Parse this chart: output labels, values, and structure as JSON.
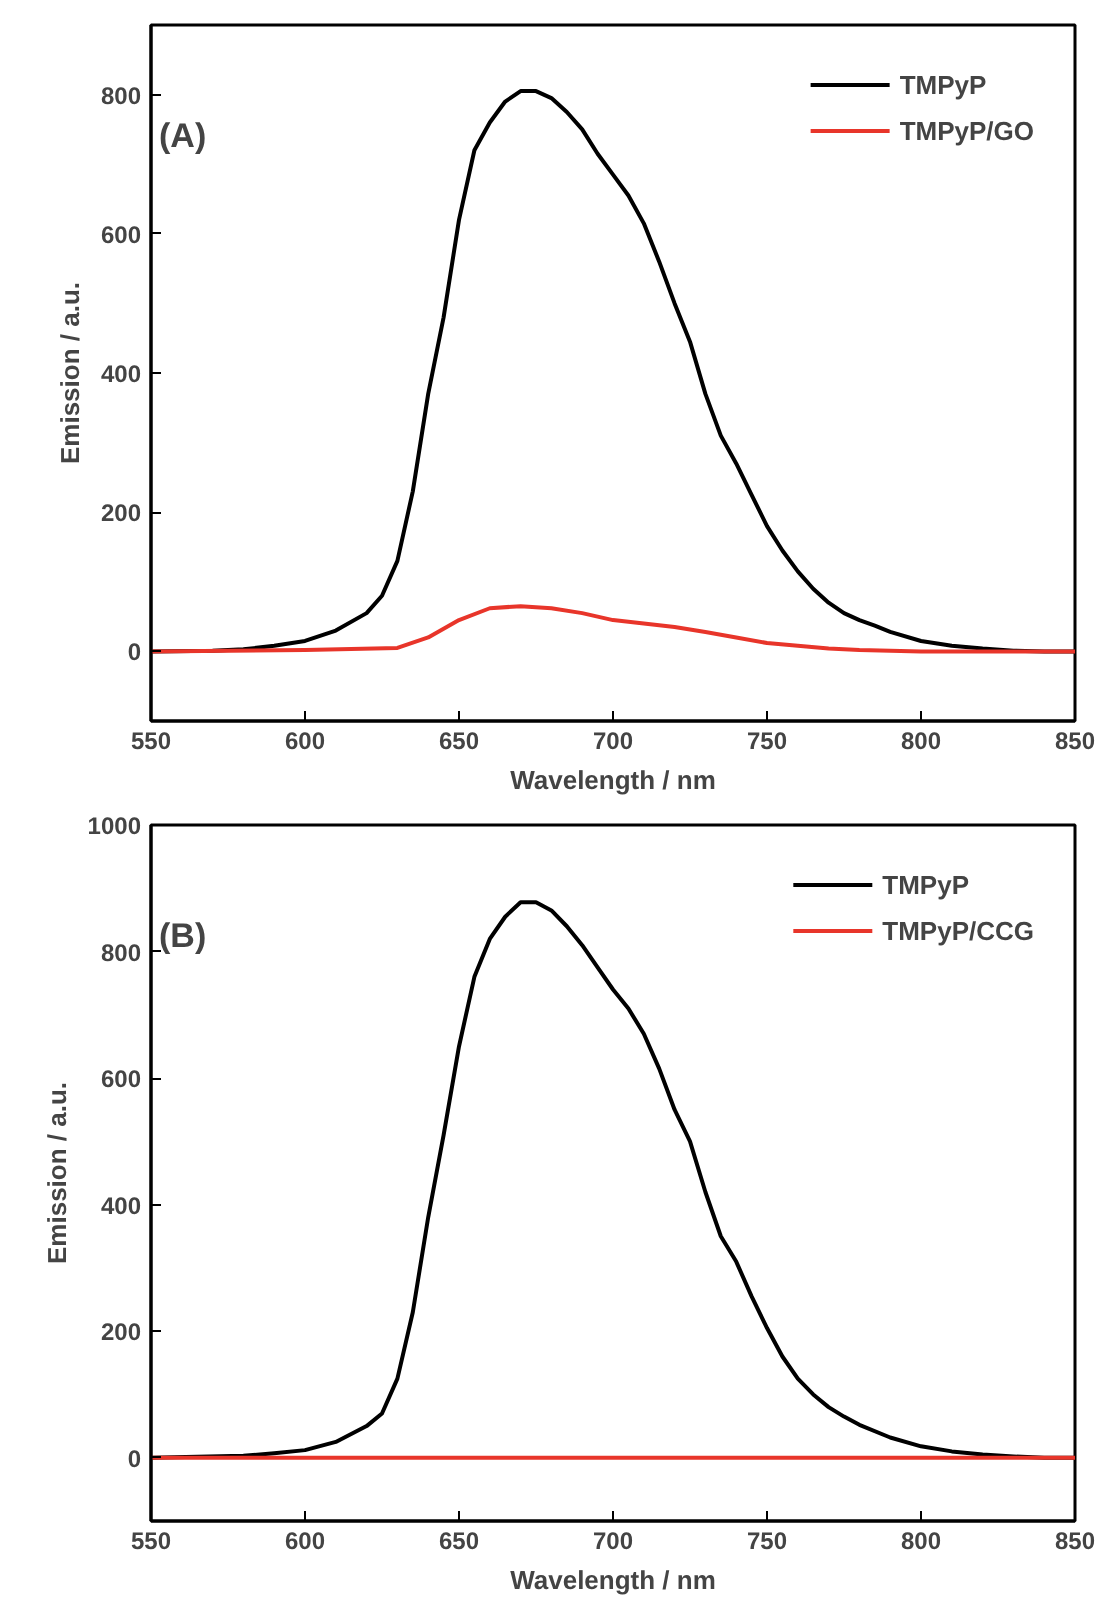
{
  "chart_data": [
    {
      "type": "line",
      "annotations": [
        "(A)"
      ],
      "xlabel": "Wavelength / nm",
      "ylabel": "Emission / a.u.",
      "xlim": [
        550,
        850
      ],
      "xticks": [
        550,
        600,
        650,
        700,
        750,
        800,
        850
      ],
      "ylim": [
        -100,
        900
      ],
      "yticks": [
        0,
        200,
        400,
        600,
        800
      ],
      "grid": false,
      "legend": "top right",
      "line_style": "solid",
      "series": [
        {
          "name": "TMPyP",
          "color": "#000000",
          "x": [
            550,
            570,
            580,
            590,
            600,
            610,
            620,
            625,
            630,
            635,
            640,
            645,
            650,
            655,
            660,
            665,
            670,
            675,
            680,
            685,
            690,
            695,
            700,
            705,
            710,
            715,
            720,
            725,
            730,
            735,
            740,
            745,
            750,
            755,
            760,
            765,
            770,
            775,
            780,
            785,
            790,
            800,
            810,
            820,
            830,
            840,
            850
          ],
          "values": [
            0,
            1,
            3,
            8,
            15,
            30,
            55,
            80,
            130,
            230,
            370,
            480,
            620,
            720,
            760,
            790,
            805,
            805,
            795,
            775,
            750,
            715,
            685,
            655,
            615,
            560,
            500,
            445,
            370,
            310,
            270,
            225,
            180,
            145,
            115,
            90,
            70,
            55,
            45,
            37,
            28,
            15,
            8,
            4,
            1,
            0,
            0
          ]
        },
        {
          "name": "TMPyP/GO",
          "color": "#e8352a",
          "x": [
            550,
            600,
            630,
            640,
            650,
            660,
            670,
            680,
            690,
            700,
            710,
            720,
            730,
            740,
            750,
            760,
            770,
            780,
            800,
            850
          ],
          "values": [
            0,
            2,
            5,
            20,
            45,
            62,
            65,
            62,
            55,
            45,
            40,
            35,
            28,
            20,
            12,
            8,
            4,
            2,
            0,
            0
          ]
        }
      ]
    },
    {
      "type": "line",
      "annotations": [
        "(B)"
      ],
      "xlabel": "Wavelength / nm",
      "ylabel": "Emission / a.u.",
      "xlim": [
        550,
        850
      ],
      "xticks": [
        550,
        600,
        650,
        700,
        750,
        800,
        850
      ],
      "ylim": [
        -100,
        1000
      ],
      "yticks": [
        0,
        200,
        400,
        600,
        800,
        1000
      ],
      "grid": false,
      "legend": "top right",
      "line_style": "solid",
      "series": [
        {
          "name": "TMPyP",
          "color": "#000000",
          "x": [
            550,
            580,
            590,
            600,
            610,
            620,
            625,
            630,
            635,
            640,
            645,
            650,
            655,
            660,
            665,
            670,
            675,
            680,
            685,
            690,
            695,
            700,
            705,
            710,
            715,
            720,
            725,
            730,
            735,
            740,
            745,
            750,
            755,
            760,
            765,
            770,
            775,
            780,
            790,
            800,
            810,
            820,
            830,
            840,
            850
          ],
          "values": [
            0,
            3,
            7,
            12,
            25,
            50,
            70,
            125,
            230,
            380,
            510,
            650,
            760,
            820,
            855,
            878,
            878,
            865,
            840,
            810,
            775,
            740,
            710,
            670,
            615,
            550,
            500,
            420,
            350,
            310,
            255,
            205,
            160,
            125,
            100,
            80,
            65,
            52,
            32,
            18,
            10,
            5,
            2,
            0,
            0
          ]
        },
        {
          "name": "TMPyP/CCG",
          "color": "#e8352a",
          "x": [
            550,
            600,
            650,
            700,
            750,
            800,
            850
          ],
          "values": [
            0,
            0,
            0,
            0,
            0,
            0,
            0
          ]
        }
      ]
    }
  ]
}
